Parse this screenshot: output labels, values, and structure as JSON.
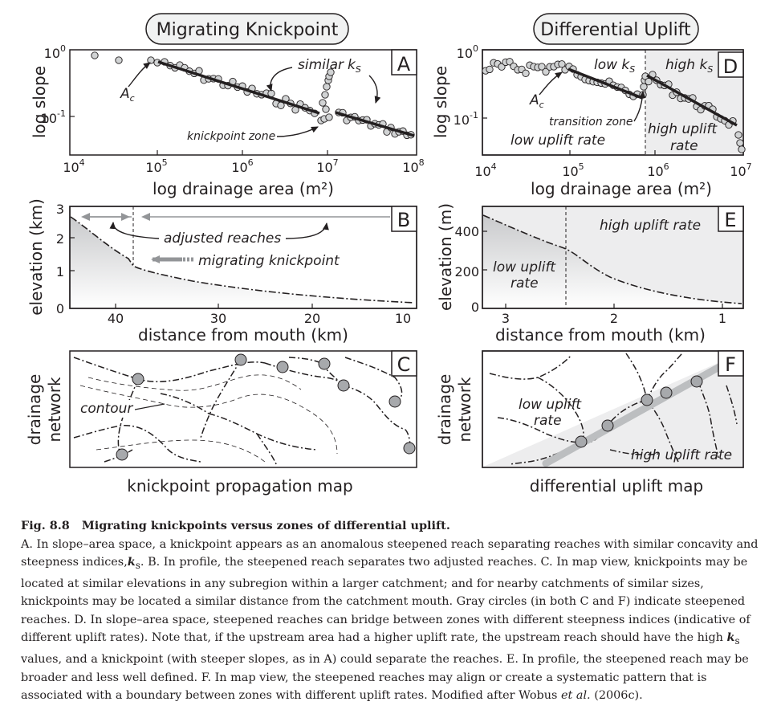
{
  "headers": {
    "left": "Migrating Knickpoint",
    "right": "Differential Uplift"
  },
  "panels": {
    "A": {
      "letter": "A",
      "ylabel": "log slope",
      "xlabel": "log drainage area (m²)",
      "yticks": {
        "top_base": "10",
        "top_exp": "0",
        "mid_base": "10",
        "mid_exp": "-1"
      },
      "xticks": [
        {
          "base": "10",
          "exp": "4"
        },
        {
          "base": "10",
          "exp": "5"
        },
        {
          "base": "10",
          "exp": "6"
        },
        {
          "base": "10",
          "exp": "7"
        },
        {
          "base": "10",
          "exp": "8"
        }
      ],
      "ann_similar": "similar",
      "ann_ks": "k",
      "ann_ks_sub": "S",
      "ann_ac": "A",
      "ann_ac_sub": "c",
      "ann_knickzone": "knickpoint zone"
    },
    "B": {
      "letter": "B",
      "ylabel": "elevation (km)",
      "xlabel": "distance from mouth (km)",
      "yticks": [
        "3",
        "2",
        "1",
        "0"
      ],
      "xticks": [
        "40",
        "30",
        "20",
        "10"
      ],
      "ann_adjusted": "adjusted reaches",
      "ann_migrating": "migrating knickpoint"
    },
    "C": {
      "letter": "C",
      "ylabel": "drainage network",
      "ylabel_line1": "drainage",
      "ylabel_line2": "network",
      "title": "knickpoint propagation map",
      "ann_contour": "contour"
    },
    "D": {
      "letter": "D",
      "ylabel": "log slope",
      "xlabel": "log drainage area (m²)",
      "yticks": {
        "top_base": "10",
        "top_exp": "0",
        "mid_base": "10",
        "mid_exp": "-1"
      },
      "xticks": [
        {
          "base": "10",
          "exp": "4"
        },
        {
          "base": "10",
          "exp": "5"
        },
        {
          "base": "10",
          "exp": "6"
        },
        {
          "base": "10",
          "exp": "7"
        }
      ],
      "ann_low_ks": "low k",
      "ann_high_ks": "high k",
      "ann_ks_sub": "S",
      "ann_ac": "A",
      "ann_ac_sub": "c",
      "ann_transition": "transition zone",
      "ann_low_uplift": "low uplift rate",
      "ann_high_uplift_1": "high uplift",
      "ann_high_uplift_2": "rate"
    },
    "E": {
      "letter": "E",
      "ylabel": "elevation (m)",
      "xlabel": "distance from mouth (km)",
      "yticks": [
        "400",
        "200",
        "0"
      ],
      "xticks": [
        "3",
        "2",
        "1"
      ],
      "ann_high_uplift": "high uplift rate",
      "ann_low_uplift_1": "low uplift",
      "ann_low_uplift_2": "rate"
    },
    "F": {
      "letter": "F",
      "ylabel": "drainage network",
      "ylabel_line1": "drainage",
      "ylabel_line2": "network",
      "title": "differential uplift map",
      "ann_low_uplift_1": "low uplift",
      "ann_low_uplift_2": "rate",
      "ann_high_uplift": "high uplift rate"
    }
  },
  "caption": {
    "fig_label": "Fig. 8.8",
    "fig_title": "Migrating knickpoints versus zones of differential uplift.",
    "A": "A. In slope–area space, a knickpoint appears as an anomalous steepened reach separating reaches with similar concavity and steepness indices,",
    "A_k": "k",
    "A_s": "s",
    "B": ". B. In profile, the steepened reach separates two adjusted reaches. C. In map view, knickpoints may be located at similar elevations in any subregion within a larger catchment; and for nearby catchments of similar sizes, knickpoints may be located a similar distance from the catchment mouth. Gray circles (in both C and F) indicate steepened reaches. D. In slope–area space, steepened reaches can bridge between zones with different steepness indices (indicative of different uplift rates). Note that, if the upstream area had a higher uplift rate, the upstream reach should have the high",
    "B_k": "k",
    "B_s": "s",
    "C": "values, and a knickpoint (with steeper slopes, as in A) could separate the reaches. E. In profile, the steepened reach may be broader and less well defined. F. In map view, the steepened reaches may align or create a systematic pattern that is associated with a boundary between zones with different uplift rates. Modified after Wobus",
    "etal": "et al.",
    "end": "(2006c)."
  },
  "colors": {
    "ink": "#231f20",
    "point_fill": "#d1d3d4",
    "shade": "#ededee",
    "gray_band": "#bcbec0",
    "arrow_gray": "#939598",
    "header_fill": "#f1f2f2"
  }
}
